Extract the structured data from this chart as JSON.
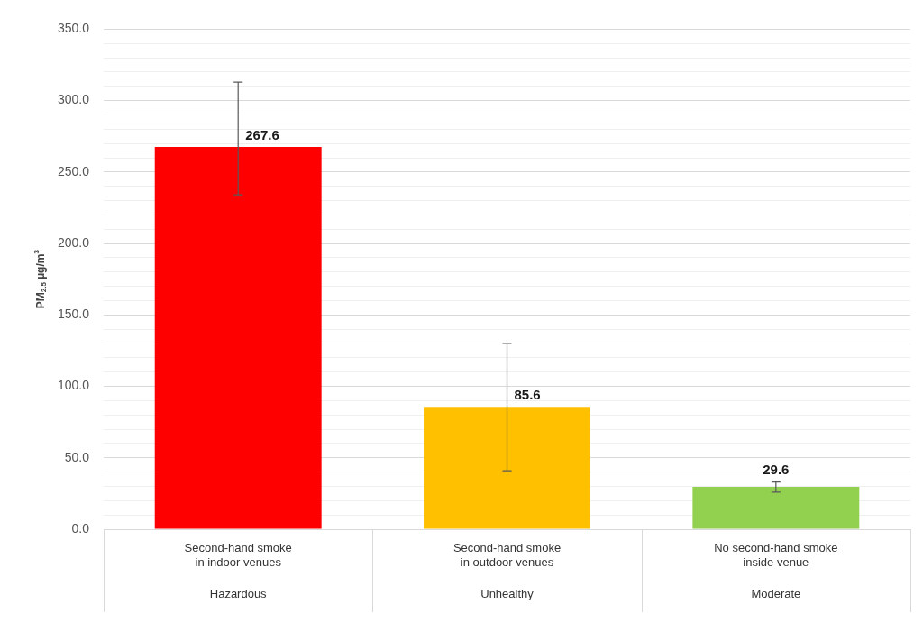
{
  "chart_data": {
    "type": "bar",
    "ylabel": "PM$_{2.5}$ µg/m$^{3}$",
    "categories": [
      "Second-hand smoke\nin indoor venues",
      "Second-hand smoke\nin outdoor venues",
      "No second-hand smoke\ninside venue"
    ],
    "values": [
      267.6,
      85.6,
      29.6
    ],
    "colors": [
      "#ff0000",
      "#ffc000",
      "#92d050"
    ],
    "errors": [
      [
        234,
        313
      ],
      [
        41,
        130
      ],
      [
        26,
        33
      ]
    ],
    "data_labels": true,
    "annotations": [
      "Hazardous",
      "Unhealthy",
      "Moderate"
    ],
    "ylim": [
      0,
      350
    ],
    "yticks": [
      {
        "value": 0,
        "label": "0.0"
      },
      {
        "value": 10,
        "label": null
      },
      {
        "value": 20,
        "label": null
      },
      {
        "value": 30,
        "label": null
      },
      {
        "value": 40,
        "label": null
      },
      {
        "value": 50,
        "label": "50.0"
      },
      {
        "value": 60,
        "label": null
      },
      {
        "value": 70,
        "label": null
      },
      {
        "value": 80,
        "label": null
      },
      {
        "value": 90,
        "label": null
      },
      {
        "value": 100,
        "label": "100.0"
      },
      {
        "value": 110,
        "label": null
      },
      {
        "value": 120,
        "label": null
      },
      {
        "value": 130,
        "label": null
      },
      {
        "value": 140,
        "label": null
      },
      {
        "value": 150,
        "label": "150.0"
      },
      {
        "value": 160,
        "label": null
      },
      {
        "value": 170,
        "label": null
      },
      {
        "value": 180,
        "label": null
      },
      {
        "value": 190,
        "label": null
      },
      {
        "value": 200,
        "label": "200.0"
      },
      {
        "value": 210,
        "label": null
      },
      {
        "value": 220,
        "label": null
      },
      {
        "value": 230,
        "label": null
      },
      {
        "value": 240,
        "label": null
      },
      {
        "value": 250,
        "label": "250.0"
      },
      {
        "value": 260,
        "label": null
      },
      {
        "value": 270,
        "label": null
      },
      {
        "value": 280,
        "label": null
      },
      {
        "value": 290,
        "label": null
      },
      {
        "value": 300,
        "label": "300.0"
      },
      {
        "value": 310,
        "label": null
      },
      {
        "value": 320,
        "label": null
      },
      {
        "value": 330,
        "label": null
      },
      {
        "value": 340,
        "label": null
      },
      {
        "value": 350,
        "label": "350.0"
      }
    ],
    "grid": "y",
    "legend": false
  }
}
